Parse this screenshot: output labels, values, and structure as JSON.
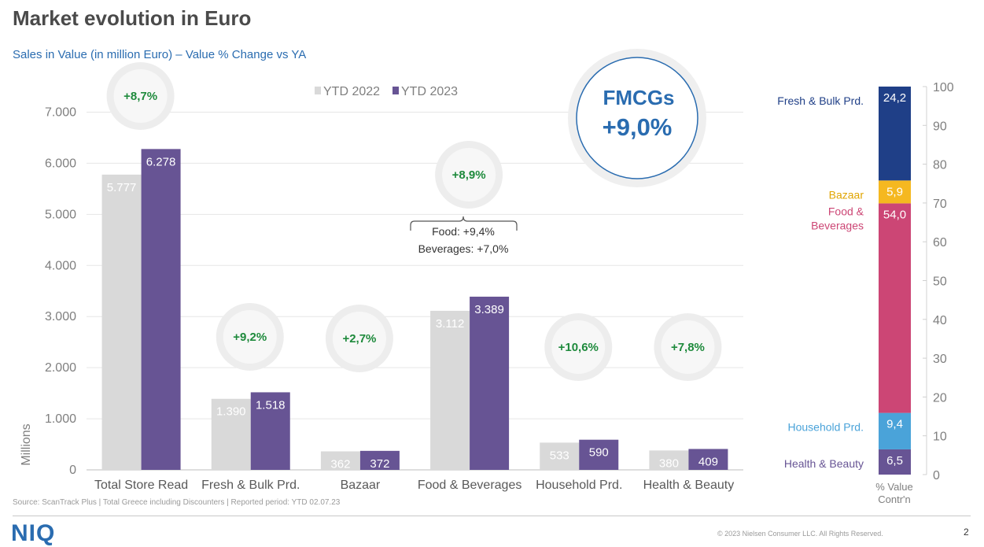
{
  "title": "Market evolution in Euro",
  "subtitle": "Sales in Value (in million Euro) – Value % Change vs YA",
  "source": "Source: ScanTrack Plus | Total Greece including Discounters |  Reported period: YTD 02.07.23",
  "logo": "NIQ",
  "copyright": "© 2023 Nielsen Consumer LLC. All Rights Reserved.",
  "page_number": "2",
  "fmcg": {
    "label": "FMCGs",
    "value": "+9,0%"
  },
  "annotation": {
    "line1": "Food: +9,4%",
    "line2": "Beverages: +7,0%"
  },
  "colors": {
    "ytd2022": "#d9d9d9",
    "ytd2023": "#675494",
    "growth_text": "#1e8a3c",
    "fresh": "#1f3f87",
    "bazaar": "#f5b820",
    "food": "#cc4675",
    "household": "#4aa3d9",
    "health": "#675494"
  },
  "chart_data": [
    {
      "type": "bar",
      "categories": [
        "Total Store Read",
        "Fresh & Bulk Prd.",
        "Bazaar",
        "Food & Beverages",
        "Household Prd.",
        "Health & Beauty"
      ],
      "series": [
        {
          "name": "YTD 2022",
          "values": [
            5777,
            1390,
            362,
            3112,
            533,
            380
          ],
          "labels": [
            "5.777",
            "1.390",
            "362",
            "3.112",
            "533",
            "380"
          ]
        },
        {
          "name": "YTD 2023",
          "values": [
            6278,
            1518,
            372,
            3389,
            590,
            409
          ],
          "labels": [
            "6.278",
            "1.518",
            "372",
            "3.389",
            "590",
            "409"
          ]
        }
      ],
      "growth_labels": [
        "+8,7%",
        "+9,2%",
        "+2,7%",
        "+8,9%",
        "+10,6%",
        "+7,8%"
      ],
      "ylabel": "Millions",
      "ylim": [
        0,
        7500
      ],
      "yticks": [
        0,
        1000,
        2000,
        3000,
        4000,
        5000,
        6000,
        7000
      ],
      "ytick_labels": [
        "0",
        "1.000",
        "2.000",
        "3.000",
        "4.000",
        "5.000",
        "6.000",
        "7.000"
      ],
      "legend_position": "top-center",
      "grid": true
    },
    {
      "type": "bar",
      "stacked": true,
      "xlabel_lines": [
        "% Value",
        "Contr'n"
      ],
      "ylim": [
        0,
        100
      ],
      "yticks": [
        0,
        10,
        20,
        30,
        40,
        50,
        60,
        70,
        80,
        90,
        100
      ],
      "segments": [
        {
          "name": "Health & Beauty",
          "value": 6.5,
          "label": "6,5",
          "color": "#675494"
        },
        {
          "name": "Household Prd.",
          "value": 9.4,
          "label": "9,4",
          "color": "#4aa3d9"
        },
        {
          "name": "Food & Beverages",
          "name_lines": [
            "Food &",
            "Beverages"
          ],
          "value": 54.0,
          "label": "54,0",
          "color": "#cc4675"
        },
        {
          "name": "Bazaar",
          "value": 5.9,
          "label": "5,9",
          "color": "#f5b820"
        },
        {
          "name": "Fresh & Bulk Prd.",
          "value": 24.2,
          "label": "24,2",
          "color": "#1f3f87"
        }
      ]
    }
  ]
}
